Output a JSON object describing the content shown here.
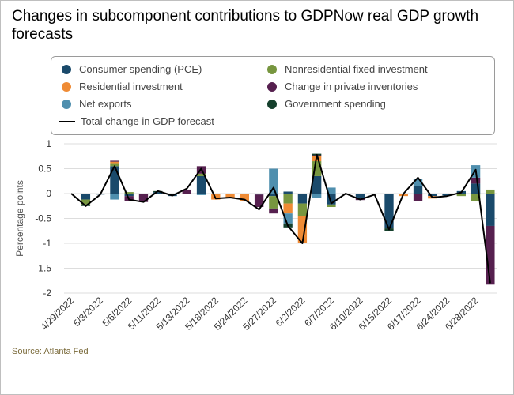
{
  "title": "Changes in subcomponent contributions to GDPNow real GDP growth forecasts",
  "source": "Source: Atlanta Fed",
  "legend": {
    "pce": "Consumer spending (PCE)",
    "nfi": "Nonresidential fixed investment",
    "res": "Residential investment",
    "inv": "Change in private inventories",
    "nx": "Net exports",
    "gov": "Government spending",
    "total": "Total change in GDP forecast"
  },
  "colors": {
    "pce": "#1a4a6b",
    "nfi": "#77963f",
    "res": "#ef8b35",
    "inv": "#56204f",
    "nx": "#4f8fae",
    "gov": "#15402c",
    "total": "#000000",
    "grid": "#dddddd",
    "source": "#7a6a3a"
  },
  "chart_data": {
    "type": "bar",
    "stacked": true,
    "ylabel": "Percentage points",
    "ylim": [
      -2,
      1
    ],
    "yticks": [
      1,
      0.5,
      0,
      -0.5,
      -1,
      -1.5,
      -2
    ],
    "ytick_labels": [
      "1",
      "0.5",
      "0",
      "-0.5",
      "-1",
      "-1.5",
      "-2"
    ],
    "x_tick_labels": [
      "4/29/2022",
      "5/3/2022",
      "5/6/2022",
      "5/11/2022",
      "5/13/2022",
      "5/18/2022",
      "5/24/2022",
      "5/27/2022",
      "6/2/2022",
      "6/7/2022",
      "6/10/2022",
      "6/15/2022",
      "6/17/2022",
      "6/24/2022",
      "6/28/2022"
    ],
    "x_tick_positions": [
      0,
      2,
      4,
      6,
      8,
      10,
      12,
      14,
      16,
      18,
      20,
      22,
      24,
      26,
      28
    ],
    "series_order": [
      "pce",
      "nfi",
      "res",
      "inv",
      "nx",
      "gov"
    ],
    "points": [
      {
        "pce": 0,
        "nfi": 0,
        "res": 0,
        "inv": 0,
        "nx": 0,
        "gov": 0,
        "total": 0
      },
      {
        "pce": -0.12,
        "nfi": -0.1,
        "res": 0,
        "inv": 0,
        "nx": 0,
        "gov": -0.03,
        "total": -0.25
      },
      {
        "pce": -0.02,
        "nfi": 0,
        "res": 0,
        "inv": 0,
        "nx": 0,
        "gov": 0,
        "total": -0.02
      },
      {
        "pce": 0.55,
        "nfi": 0.06,
        "res": 0.03,
        "inv": 0.02,
        "nx": -0.12,
        "gov": 0,
        "total": 0.55
      },
      {
        "pce": -0.05,
        "nfi": 0.03,
        "res": 0,
        "inv": -0.1,
        "nx": 0,
        "gov": 0,
        "total": -0.12
      },
      {
        "pce": 0,
        "nfi": 0,
        "res": 0,
        "inv": -0.17,
        "nx": 0,
        "gov": 0,
        "total": -0.17
      },
      {
        "pce": 0.03,
        "nfi": 0,
        "res": 0,
        "inv": 0,
        "nx": 0,
        "gov": 0.02,
        "total": 0.05
      },
      {
        "pce": -0.05,
        "nfi": 0,
        "res": 0,
        "inv": 0,
        "nx": 0,
        "gov": 0,
        "total": -0.04
      },
      {
        "pce": 0,
        "nfi": 0,
        "res": 0,
        "inv": 0.08,
        "nx": 0,
        "gov": 0,
        "total": 0.1
      },
      {
        "pce": 0.35,
        "nfi": 0.05,
        "res": 0,
        "inv": 0.15,
        "nx": -0.03,
        "gov": 0,
        "total": 0.5
      },
      {
        "pce": 0,
        "nfi": 0,
        "res": -0.12,
        "inv": 0,
        "nx": 0,
        "gov": 0,
        "total": -0.1
      },
      {
        "pce": 0,
        "nfi": 0,
        "res": -0.08,
        "inv": 0,
        "nx": 0,
        "gov": 0,
        "total": -0.08
      },
      {
        "pce": 0,
        "nfi": 0,
        "res": -0.15,
        "inv": 0,
        "nx": 0,
        "gov": 0,
        "total": -0.12
      },
      {
        "pce": -0.02,
        "nfi": 0,
        "res": 0,
        "inv": -0.25,
        "nx": 0,
        "gov": 0,
        "total": -0.32
      },
      {
        "pce": -0.05,
        "nfi": -0.25,
        "res": 0,
        "inv": -0.1,
        "nx": 0.5,
        "gov": 0,
        "total": 0.12
      },
      {
        "pce": 0.04,
        "nfi": -0.2,
        "res": -0.2,
        "inv": 0,
        "nx": -0.2,
        "gov": -0.08,
        "total": -0.65
      },
      {
        "pce": -0.2,
        "nfi": -0.25,
        "res": -0.55,
        "inv": 0,
        "nx": 0,
        "gov": 0,
        "total": -1.0
      },
      {
        "pce": 0.35,
        "nfi": 0.3,
        "res": 0.1,
        "inv": 0.02,
        "nx": -0.08,
        "gov": 0.03,
        "total": 0.78
      },
      {
        "pce": -0.22,
        "nfi": -0.05,
        "res": 0,
        "inv": 0,
        "nx": 0.12,
        "gov": 0,
        "total": -0.2
      },
      {
        "pce": 0,
        "nfi": 0,
        "res": 0,
        "inv": 0,
        "nx": 0,
        "gov": 0,
        "total": 0
      },
      {
        "pce": -0.08,
        "nfi": 0,
        "res": 0,
        "inv": -0.05,
        "nx": 0,
        "gov": 0,
        "total": -0.12
      },
      {
        "pce": 0,
        "nfi": 0,
        "res": 0,
        "inv": 0,
        "nx": 0,
        "gov": 0,
        "total": -0.02
      },
      {
        "pce": -0.7,
        "nfi": 0,
        "res": 0,
        "inv": 0,
        "nx": 0,
        "gov": -0.05,
        "total": -0.72
      },
      {
        "pce": 0,
        "nfi": 0,
        "res": -0.05,
        "inv": 0,
        "nx": 0,
        "gov": 0,
        "total": 0
      },
      {
        "pce": 0.15,
        "nfi": 0,
        "res": 0,
        "inv": -0.15,
        "nx": 0.15,
        "gov": 0,
        "total": 0.32
      },
      {
        "pce": -0.05,
        "nfi": 0,
        "res": -0.05,
        "inv": 0,
        "nx": 0,
        "gov": 0,
        "total": -0.08
      },
      {
        "pce": -0.04,
        "nfi": 0,
        "res": 0,
        "inv": 0,
        "nx": 0,
        "gov": 0,
        "total": -0.05
      },
      {
        "pce": 0.05,
        "nfi": -0.05,
        "res": 0,
        "inv": 0,
        "nx": 0,
        "gov": 0,
        "total": 0.02
      },
      {
        "pce": 0.2,
        "nfi": -0.15,
        "res": 0,
        "inv": 0.12,
        "nx": 0.25,
        "gov": 0,
        "total": 0.48
      },
      {
        "pce": -0.65,
        "nfi": 0.08,
        "res": 0,
        "inv": -1.18,
        "nx": 0,
        "gov": 0,
        "total": -1.8
      }
    ]
  }
}
